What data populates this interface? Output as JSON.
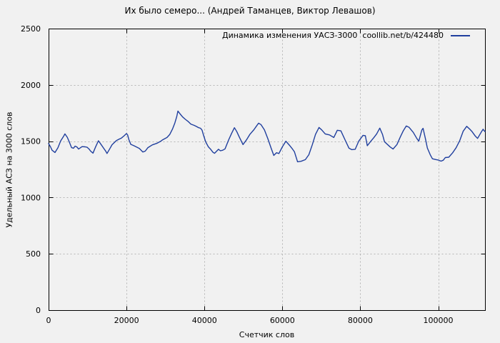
{
  "window": {
    "background": "#f1f1f1"
  },
  "chart_data": {
    "type": "line",
    "title": "Их было семеро... (Андрей Таманцев, Виктор Левашов)",
    "xlabel": "Счетчик слов",
    "ylabel": "Удельный АСЗ на 3000 слов",
    "xlim": [
      0,
      112000
    ],
    "ylim": [
      0,
      2500
    ],
    "xticks": [
      0,
      20000,
      40000,
      60000,
      80000,
      100000
    ],
    "yticks": [
      0,
      500,
      1000,
      1500,
      2000,
      2500
    ],
    "grid": true,
    "legend": {
      "label": "Динамика изменения УАСЗ-3000  coollib.net/b/424480",
      "position": "top-right-inside"
    },
    "colors": {
      "line": "#203f9e",
      "grid": "#b5b5b5",
      "axis": "#000000",
      "background": "#f1f1f1",
      "text": "#000000"
    },
    "series": [
      {
        "name": "Динамика изменения УАСЗ-3000  coollib.net/b/424480",
        "color": "#203f9e",
        "points": [
          [
            0,
            1480
          ],
          [
            500,
            1450
          ],
          [
            900,
            1420
          ],
          [
            1650,
            1400
          ],
          [
            2400,
            1442
          ],
          [
            3100,
            1502
          ],
          [
            3800,
            1540
          ],
          [
            4200,
            1565
          ],
          [
            4800,
            1535
          ],
          [
            5300,
            1495
          ],
          [
            5900,
            1443
          ],
          [
            6400,
            1438
          ],
          [
            6800,
            1456
          ],
          [
            7300,
            1448
          ],
          [
            7700,
            1430
          ],
          [
            8600,
            1452
          ],
          [
            9400,
            1450
          ],
          [
            9900,
            1446
          ],
          [
            10400,
            1430
          ],
          [
            10800,
            1412
          ],
          [
            11400,
            1394
          ],
          [
            12100,
            1452
          ],
          [
            12800,
            1504
          ],
          [
            13500,
            1470
          ],
          [
            14100,
            1440
          ],
          [
            14700,
            1410
          ],
          [
            15000,
            1391
          ],
          [
            15700,
            1432
          ],
          [
            16300,
            1469
          ],
          [
            17000,
            1492
          ],
          [
            17400,
            1506
          ],
          [
            18100,
            1518
          ],
          [
            18700,
            1528
          ],
          [
            19400,
            1548
          ],
          [
            20000,
            1568
          ],
          [
            20300,
            1555
          ],
          [
            20600,
            1515
          ],
          [
            21100,
            1472
          ],
          [
            21800,
            1462
          ],
          [
            22400,
            1452
          ],
          [
            23300,
            1436
          ],
          [
            24200,
            1404
          ],
          [
            24800,
            1412
          ],
          [
            25500,
            1443
          ],
          [
            26600,
            1467
          ],
          [
            27900,
            1483
          ],
          [
            28700,
            1498
          ],
          [
            29300,
            1513
          ],
          [
            30400,
            1533
          ],
          [
            31100,
            1560
          ],
          [
            31800,
            1608
          ],
          [
            32400,
            1662
          ],
          [
            32900,
            1720
          ],
          [
            33200,
            1768
          ],
          [
            33700,
            1745
          ],
          [
            34400,
            1715
          ],
          [
            35100,
            1694
          ],
          [
            35800,
            1676
          ],
          [
            36500,
            1652
          ],
          [
            37400,
            1640
          ],
          [
            38000,
            1630
          ],
          [
            38400,
            1622
          ],
          [
            39000,
            1615
          ],
          [
            39400,
            1598
          ],
          [
            39700,
            1560
          ],
          [
            40300,
            1495
          ],
          [
            41000,
            1450
          ],
          [
            41600,
            1428
          ],
          [
            42200,
            1401
          ],
          [
            42600,
            1393
          ],
          [
            43100,
            1410
          ],
          [
            43600,
            1428
          ],
          [
            44100,
            1415
          ],
          [
            44700,
            1420
          ],
          [
            45300,
            1432
          ],
          [
            46200,
            1510
          ],
          [
            47000,
            1572
          ],
          [
            47700,
            1620
          ],
          [
            48300,
            1585
          ],
          [
            48900,
            1540
          ],
          [
            49900,
            1470
          ],
          [
            50800,
            1512
          ],
          [
            51700,
            1562
          ],
          [
            52700,
            1602
          ],
          [
            53300,
            1632
          ],
          [
            53900,
            1660
          ],
          [
            54500,
            1648
          ],
          [
            55400,
            1600
          ],
          [
            56300,
            1520
          ],
          [
            57100,
            1440
          ],
          [
            57800,
            1374
          ],
          [
            58500,
            1398
          ],
          [
            59100,
            1390
          ],
          [
            60000,
            1450
          ],
          [
            60900,
            1500
          ],
          [
            61800,
            1465
          ],
          [
            62600,
            1430
          ],
          [
            63100,
            1406
          ],
          [
            63900,
            1317
          ],
          [
            64800,
            1322
          ],
          [
            65900,
            1336
          ],
          [
            66800,
            1380
          ],
          [
            67700,
            1470
          ],
          [
            68500,
            1560
          ],
          [
            69400,
            1622
          ],
          [
            70100,
            1600
          ],
          [
            71000,
            1565
          ],
          [
            72100,
            1556
          ],
          [
            73200,
            1533
          ],
          [
            74100,
            1597
          ],
          [
            75000,
            1592
          ],
          [
            76100,
            1510
          ],
          [
            77100,
            1438
          ],
          [
            77800,
            1425
          ],
          [
            78700,
            1428
          ],
          [
            79600,
            1500
          ],
          [
            80700,
            1552
          ],
          [
            81300,
            1548
          ],
          [
            81800,
            1460
          ],
          [
            82700,
            1500
          ],
          [
            83500,
            1533
          ],
          [
            84200,
            1565
          ],
          [
            85000,
            1616
          ],
          [
            85700,
            1560
          ],
          [
            86200,
            1495
          ],
          [
            87000,
            1470
          ],
          [
            87700,
            1448
          ],
          [
            88400,
            1431
          ],
          [
            89400,
            1470
          ],
          [
            90300,
            1540
          ],
          [
            91000,
            1590
          ],
          [
            91800,
            1635
          ],
          [
            92500,
            1624
          ],
          [
            93600,
            1578
          ],
          [
            94500,
            1525
          ],
          [
            95000,
            1500
          ],
          [
            95800,
            1600
          ],
          [
            96100,
            1614
          ],
          [
            96700,
            1525
          ],
          [
            97200,
            1440
          ],
          [
            98000,
            1376
          ],
          [
            98500,
            1344
          ],
          [
            99500,
            1336
          ],
          [
            100000,
            1333
          ],
          [
            100700,
            1323
          ],
          [
            101300,
            1331
          ],
          [
            101800,
            1355
          ],
          [
            102700,
            1358
          ],
          [
            103700,
            1397
          ],
          [
            104600,
            1442
          ],
          [
            105500,
            1503
          ],
          [
            106400,
            1588
          ],
          [
            107300,
            1632
          ],
          [
            108000,
            1610
          ],
          [
            108600,
            1588
          ],
          [
            109500,
            1546
          ],
          [
            110100,
            1525
          ],
          [
            111000,
            1578
          ],
          [
            111500,
            1606
          ],
          [
            112000,
            1585
          ]
        ]
      }
    ]
  }
}
